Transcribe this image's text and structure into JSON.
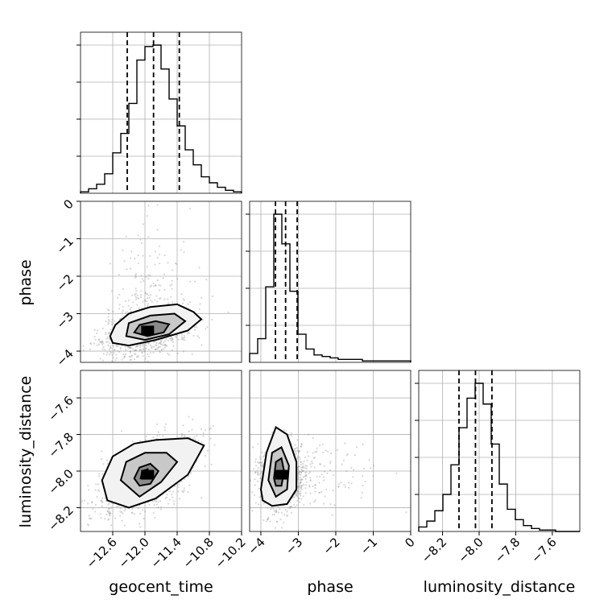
{
  "chart_data": {
    "type": "corner",
    "parameters": [
      "geocent_time",
      "phase",
      "luminosity_distance"
    ],
    "ranges": {
      "geocent_time": [
        -13.2,
        -10.2
      ],
      "phase": [
        -4.3,
        0.0
      ],
      "luminosity_distance": [
        -8.33,
        -7.45
      ]
    },
    "ticks": {
      "geocent_time": [
        -12.6,
        -12.0,
        -11.4,
        -10.8,
        -10.2
      ],
      "phase": [
        -4,
        -3,
        -2,
        -1,
        0
      ],
      "luminosity_distance": [
        -8.2,
        -8.0,
        -7.8,
        -7.6
      ]
    },
    "tick_labels": {
      "geocent_time": [
        "−12.6",
        "−12.0",
        "−11.4",
        "−10.8",
        "−10.2"
      ],
      "phase": [
        "−4",
        "−3",
        "−2",
        "−1",
        "0"
      ],
      "luminosity_distance": [
        "−8.2",
        "−8.0",
        "−7.8",
        "−7.6"
      ]
    },
    "axis_labels": {
      "geocent_time": "geocent_time",
      "phase": "phase",
      "luminosity_distance": "luminosity_distance"
    },
    "histograms": {
      "geocent_time": {
        "edges_start": -13.2,
        "bin_width": 0.15,
        "counts": [
          1,
          3,
          6,
          13,
          27,
          40,
          60,
          89,
          98,
          99,
          83,
          63,
          45,
          29,
          19,
          11,
          7,
          4,
          2,
          1
        ]
      },
      "phase": {
        "edges_start": -4.3,
        "bin_width": 0.215,
        "counts": [
          6,
          16,
          51,
          100,
          80,
          48,
          19,
          9,
          5,
          4,
          3,
          2,
          2,
          2,
          1,
          1,
          1,
          1,
          1,
          1
        ]
      },
      "luminosity_distance": {
        "edges_start": -8.33,
        "bin_width": 0.044,
        "counts": [
          3,
          7,
          14,
          25,
          45,
          70,
          90,
          100,
          86,
          59,
          32,
          15,
          8,
          4,
          2,
          1,
          1,
          0,
          0,
          0
        ]
      }
    },
    "quantiles": {
      "geocent_time": [
        -12.33,
        -11.84,
        -11.36
      ],
      "phase": [
        -3.61,
        -3.34,
        -3.03
      ],
      "luminosity_distance": [
        -8.11,
        -8.02,
        -7.93
      ]
    },
    "pairs": [
      {
        "x": "geocent_time",
        "y": "phase",
        "center": [
          -11.95,
          -3.45
        ],
        "sigma": [
          0.4,
          0.32
        ],
        "rho": 0.35,
        "contours": [
          [
            [
              -12.65,
              -3.6
            ],
            [
              -12.55,
              -3.3
            ],
            [
              -12.3,
              -3.0
            ],
            [
              -11.9,
              -2.82
            ],
            [
              -11.4,
              -2.75
            ],
            [
              -11.1,
              -2.95
            ],
            [
              -10.95,
              -3.15
            ],
            [
              -11.2,
              -3.45
            ],
            [
              -11.8,
              -3.7
            ],
            [
              -12.3,
              -3.85
            ],
            [
              -12.6,
              -3.78
            ]
          ],
          [
            [
              -12.35,
              -3.6
            ],
            [
              -12.3,
              -3.25
            ],
            [
              -11.9,
              -3.05
            ],
            [
              -11.45,
              -3.0
            ],
            [
              -11.25,
              -3.2
            ],
            [
              -11.55,
              -3.55
            ],
            [
              -12.0,
              -3.7
            ]
          ],
          [
            [
              -12.2,
              -3.5
            ],
            [
              -12.1,
              -3.3
            ],
            [
              -11.8,
              -3.2
            ],
            [
              -11.55,
              -3.28
            ],
            [
              -11.65,
              -3.5
            ],
            [
              -11.95,
              -3.6
            ]
          ]
        ]
      },
      {
        "x": "geocent_time",
        "y": "luminosity_distance",
        "center": [
          -11.95,
          -8.02
        ],
        "sigma": [
          0.42,
          0.1
        ],
        "rho": 0.55,
        "contours": [
          [
            [
              -12.8,
              -8.05
            ],
            [
              -12.6,
              -7.92
            ],
            [
              -12.2,
              -7.85
            ],
            [
              -11.8,
              -7.83
            ],
            [
              -11.2,
              -7.82
            ],
            [
              -10.9,
              -7.86
            ],
            [
              -11.2,
              -8.02
            ],
            [
              -11.8,
              -8.15
            ],
            [
              -12.3,
              -8.2
            ],
            [
              -12.7,
              -8.16
            ]
          ],
          [
            [
              -12.45,
              -8.05
            ],
            [
              -12.35,
              -7.95
            ],
            [
              -12.0,
              -7.9
            ],
            [
              -11.6,
              -7.9
            ],
            [
              -11.4,
              -7.95
            ],
            [
              -11.7,
              -8.06
            ],
            [
              -12.1,
              -8.14
            ]
          ],
          [
            [
              -12.2,
              -8.04
            ],
            [
              -12.1,
              -7.98
            ],
            [
              -11.9,
              -7.96
            ],
            [
              -11.75,
              -8.0
            ],
            [
              -11.9,
              -8.07
            ],
            [
              -12.1,
              -8.08
            ]
          ],
          [
            [
              -12.08,
              -8.04
            ],
            [
              -12.05,
              -8.0
            ],
            [
              -11.95,
              -7.99
            ],
            [
              -11.95,
              -8.04
            ]
          ]
        ]
      },
      {
        "x": "phase",
        "y": "luminosity_distance",
        "center": [
          -3.45,
          -8.02
        ],
        "sigma": [
          0.28,
          0.09
        ],
        "rho": 0.05,
        "contours": [
          [
            [
              -4.0,
              -8.1
            ],
            [
              -3.85,
              -7.9
            ],
            [
              -3.6,
              -7.76
            ],
            [
              -3.3,
              -7.8
            ],
            [
              -3.05,
              -7.95
            ],
            [
              -3.05,
              -8.1
            ],
            [
              -3.3,
              -8.18
            ],
            [
              -3.7,
              -8.19
            ],
            [
              -3.95,
              -8.16
            ]
          ],
          [
            [
              -3.8,
              -8.05
            ],
            [
              -3.7,
              -7.9
            ],
            [
              -3.45,
              -7.87
            ],
            [
              -3.25,
              -7.97
            ],
            [
              -3.3,
              -8.1
            ],
            [
              -3.6,
              -8.14
            ]
          ],
          [
            [
              -3.65,
              -8.04
            ],
            [
              -3.6,
              -7.95
            ],
            [
              -3.45,
              -7.93
            ],
            [
              -3.38,
              -8.0
            ],
            [
              -3.45,
              -8.08
            ],
            [
              -3.6,
              -8.08
            ]
          ]
        ]
      }
    ]
  }
}
